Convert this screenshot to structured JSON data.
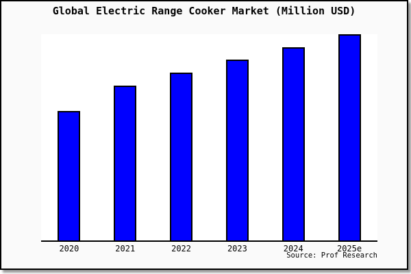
{
  "chart_data": {
    "type": "bar",
    "title": "Global Electric Range Cooker Market (Million USD)",
    "categories": [
      "2020",
      "2021",
      "2022",
      "2023",
      "2024",
      "2025e"
    ],
    "values_pct_of_max": [
      62.8,
      75.1,
      81.4,
      87.7,
      93.7,
      100.0
    ],
    "ylim_pct": [
      0,
      100
    ],
    "y_axis_labels_visible": false,
    "grid": false,
    "legend": false,
    "source_note": "Source: Prof Research",
    "colors": {
      "bar_fill": "#0000ff",
      "bar_border": "#000000",
      "card_bg": "#fafafa",
      "plot_bg": "#ffffff",
      "axis": "#000000",
      "text": "#000000"
    }
  }
}
